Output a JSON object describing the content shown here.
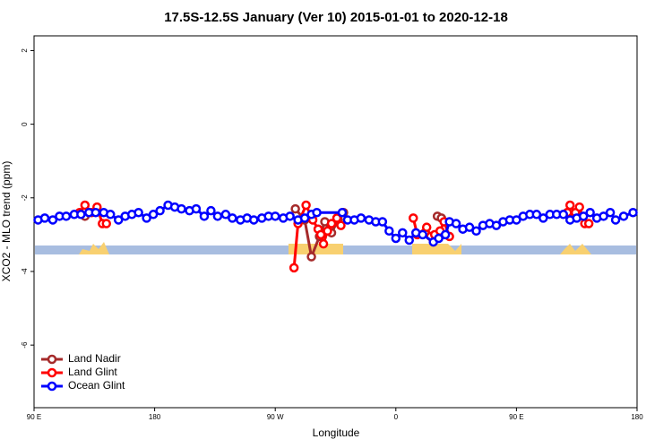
{
  "chart_data": {
    "type": "line",
    "title": "17.5S-12.5S January (Ver 10)   2015-01-01 to 2020-12-18",
    "x_label": "Longitude",
    "y_label": "XCO2 - MLO trend (ppm)",
    "xlim": [
      90,
      540
    ],
    "xticks": [
      {
        "value": 90,
        "label": "90 E"
      },
      {
        "value": 180,
        "label": "180"
      },
      {
        "value": 270,
        "label": "90 W"
      },
      {
        "value": 360,
        "label": "0"
      },
      {
        "value": 450,
        "label": "90 E"
      },
      {
        "value": 540,
        "label": "180"
      }
    ],
    "ylim": [
      -7.7,
      2.4
    ],
    "yticks": [
      2,
      0,
      -2,
      -4,
      -6
    ],
    "legend": "bottom-left",
    "series": [
      {
        "name": "Land Nadir",
        "color": "#a52a2a",
        "x": [
          128,
          131,
          null,
          285,
          292,
          297,
          303,
          307,
          312,
          317,
          321,
          null,
          391,
          394,
          null,
          488,
          493
        ],
        "values": [
          -2.5,
          -2.4,
          null,
          -2.3,
          -2.6,
          -3.6,
          -3.05,
          -2.65,
          -2.95,
          -2.6,
          -2.4,
          null,
          -2.5,
          -2.55,
          null,
          -2.4,
          -2.5
        ]
      },
      {
        "name": "Land Glint",
        "color": "#ff0000",
        "x": [
          124,
          128,
          133,
          137,
          141,
          144,
          null,
          284,
          287,
          293,
          298,
          302,
          304,
          306,
          309,
          312,
          316,
          319,
          null,
          373,
          376,
          383,
          386,
          389,
          393,
          396,
          400,
          null,
          488,
          490,
          494,
          497,
          501,
          504
        ],
        "values": [
          -2.4,
          -2.2,
          -2.4,
          -2.25,
          -2.7,
          -2.7,
          null,
          -3.9,
          -2.7,
          -2.2,
          -2.6,
          -2.85,
          -3.0,
          -3.25,
          -2.9,
          -2.7,
          -2.55,
          -2.75,
          null,
          -2.55,
          -3.0,
          -2.8,
          -3.05,
          -3.0,
          -2.9,
          -2.65,
          -3.05,
          null,
          -2.4,
          -2.2,
          -2.4,
          -2.25,
          -2.7,
          -2.7
        ]
      },
      {
        "name": "Ocean Glint",
        "color": "#0000ff",
        "x": [
          93,
          98,
          104,
          109,
          114,
          120,
          125,
          131,
          136,
          142,
          147,
          153,
          158,
          163,
          168,
          174,
          179,
          184,
          190,
          195,
          200,
          206,
          211,
          217,
          222,
          227,
          233,
          238,
          244,
          249,
          254,
          260,
          265,
          270,
          276,
          281,
          287,
          292,
          297,
          301,
          320,
          324,
          329,
          334,
          340,
          345,
          350,
          355,
          360,
          365,
          370,
          375,
          380,
          388,
          392,
          397,
          400,
          405,
          410,
          415,
          420,
          425,
          430,
          435,
          440,
          445,
          450,
          455,
          460,
          465,
          470,
          475,
          480,
          485,
          490,
          495,
          500,
          505,
          510,
          515,
          520,
          524,
          530,
          537
        ],
        "values": [
          -2.6,
          -2.55,
          -2.6,
          -2.5,
          -2.5,
          -2.45,
          -2.45,
          -2.4,
          -2.4,
          -2.4,
          -2.45,
          -2.6,
          -2.5,
          -2.45,
          -2.4,
          -2.55,
          -2.45,
          -2.35,
          -2.2,
          -2.25,
          -2.3,
          -2.35,
          -2.3,
          -2.5,
          -2.35,
          -2.5,
          -2.45,
          -2.55,
          -2.6,
          -2.55,
          -2.6,
          -2.55,
          -2.5,
          -2.5,
          -2.55,
          -2.5,
          -2.6,
          -2.55,
          -2.45,
          -2.4,
          -2.4,
          -2.6,
          -2.6,
          -2.55,
          -2.6,
          -2.65,
          -2.65,
          -2.9,
          -3.1,
          -2.95,
          -3.15,
          -2.95,
          -3.0,
          -3.2,
          -3.1,
          -3.0,
          -2.65,
          -2.7,
          -2.85,
          -2.8,
          -2.9,
          -2.75,
          -2.7,
          -2.75,
          -2.65,
          -2.6,
          -2.6,
          -2.5,
          -2.45,
          -2.45,
          -2.55,
          -2.45,
          -2.45,
          -2.45,
          -2.6,
          -2.55,
          -2.5,
          -2.4,
          -2.55,
          -2.5,
          -2.4,
          -2.6,
          -2.5,
          -2.4
        ]
      }
    ]
  }
}
